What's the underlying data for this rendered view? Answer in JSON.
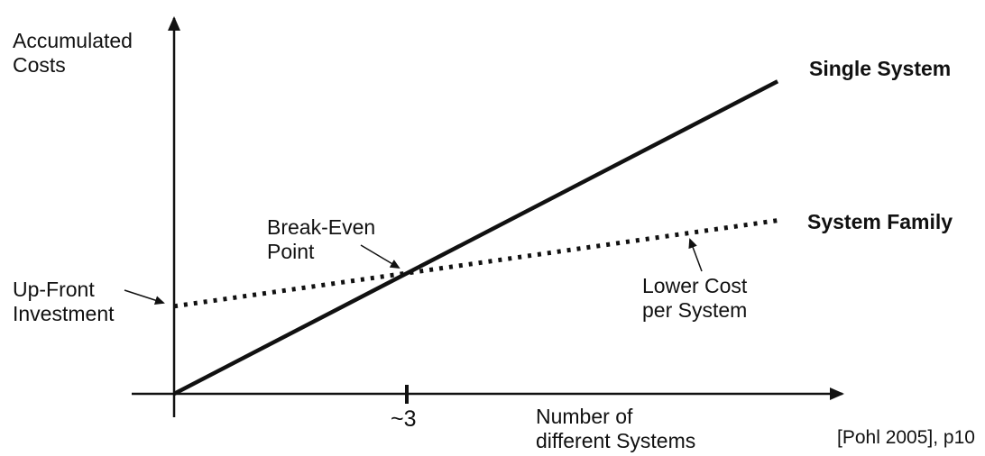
{
  "labels": {
    "y_axis": "Accumulated\nCosts",
    "x_axis": "Number of\ndifferent Systems",
    "single_system": "Single System",
    "system_family": "System Family",
    "break_even": "Break-Even\nPoint",
    "up_front": "Up-Front\nInvestment",
    "lower_cost": "Lower Cost\nper System",
    "tick": "~3",
    "citation": "[Pohl 2005], p10"
  },
  "colors": {
    "line": "#111111",
    "text": "#111111",
    "background": "#ffffff"
  },
  "chart_data": {
    "type": "line",
    "xlabel": "Number of different Systems",
    "ylabel": "Accumulated Costs",
    "x_range": [
      0,
      8.7
    ],
    "y_range": [
      0,
      10.6
    ],
    "grid": false,
    "legend_position": "inline-right",
    "series": [
      {
        "name": "Single System",
        "style": "solid",
        "points": [
          [
            0,
            0
          ],
          [
            7.78,
            8.67
          ]
        ]
      },
      {
        "name": "System Family",
        "style": "dotted",
        "points": [
          [
            0,
            2.43
          ],
          [
            7.78,
            4.81
          ]
        ]
      }
    ],
    "x_ticks": [
      {
        "value": 3,
        "label": "~3"
      }
    ],
    "annotations": [
      {
        "label": "Break-Even Point",
        "x": 3,
        "y": 3.35
      },
      {
        "label": "Up-Front Investment",
        "x": 0,
        "y": 2.43
      },
      {
        "label": "Lower Cost per System",
        "x": 6.6,
        "y": 4.45
      }
    ],
    "source": "[Pohl 2005], p10"
  }
}
